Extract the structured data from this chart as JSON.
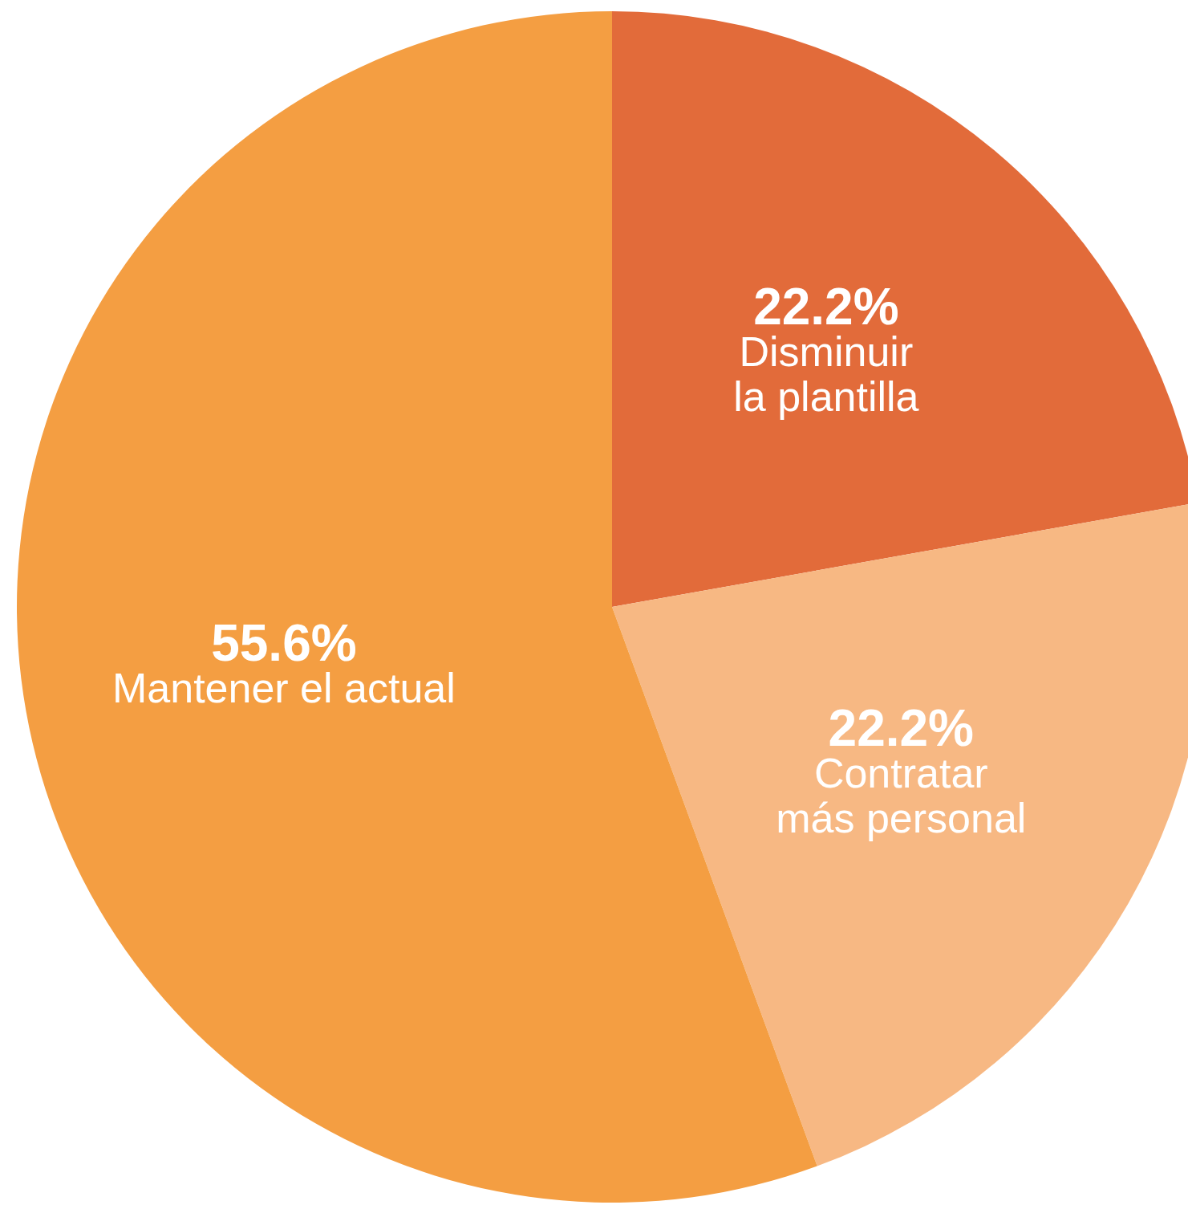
{
  "chart_data": {
    "type": "pie",
    "categories": [
      "Disminuir\nla plantilla",
      "Contratar\nmás personal",
      "Mantener el actual"
    ],
    "values": [
      22.2,
      22.2,
      55.6
    ],
    "value_labels": [
      "22.2%",
      "22.2%",
      "55.6%"
    ],
    "colors": [
      "#e26b3a",
      "#f7b883",
      "#f49e42"
    ],
    "legend": false
  }
}
